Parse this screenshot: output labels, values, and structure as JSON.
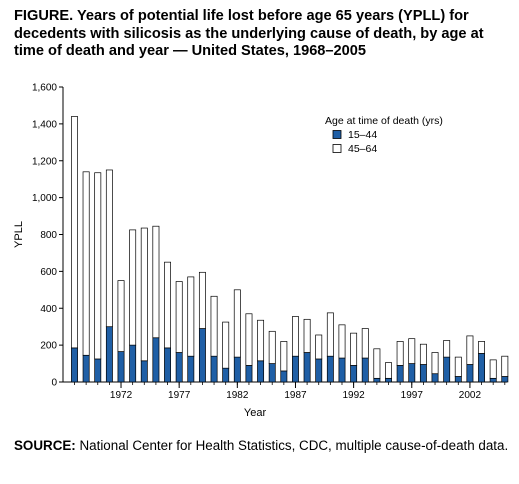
{
  "title": {
    "label": "FIGURE.",
    "text": "Years of potential life lost before age 65 years (YPLL) for decedents with silicosis as the underlying cause of death, by age at time of death and year — United States, 1968–2005"
  },
  "source": {
    "label": "SOURCE:",
    "text": "National Center for Health Statistics, CDC, multiple cause-of-death data."
  },
  "chart_data": {
    "type": "bar",
    "stacked": true,
    "xlabel": "Year",
    "ylabel": "YPLL",
    "ylim": [
      0,
      1600
    ],
    "yticks": [
      0,
      200,
      400,
      600,
      800,
      1000,
      1200,
      1400,
      1600
    ],
    "ytick_labels": [
      "0",
      "200",
      "400",
      "600",
      "800",
      "1,000",
      "1,200",
      "1,400",
      "1,600"
    ],
    "xtick_labels": [
      "1972",
      "1977",
      "1982",
      "1987",
      "1992",
      "1997",
      "2002"
    ],
    "legend": {
      "title": "Age at time of death (yrs)",
      "placement": "top-right"
    },
    "categories": [
      1968,
      1969,
      1970,
      1971,
      1972,
      1973,
      1974,
      1975,
      1976,
      1977,
      1978,
      1979,
      1980,
      1981,
      1982,
      1983,
      1984,
      1985,
      1986,
      1987,
      1988,
      1989,
      1990,
      1991,
      1992,
      1993,
      1994,
      1995,
      1996,
      1997,
      1998,
      1999,
      2000,
      2001,
      2002,
      2003,
      2004,
      2005
    ],
    "series": [
      {
        "name": "15–44",
        "color": "#1f5fa6",
        "values": [
          185,
          145,
          125,
          300,
          165,
          200,
          115,
          240,
          185,
          160,
          140,
          290,
          140,
          75,
          135,
          90,
          115,
          100,
          60,
          140,
          160,
          125,
          140,
          130,
          90,
          130,
          20,
          20,
          90,
          100,
          95,
          45,
          135,
          30,
          95,
          155,
          20,
          30
        ]
      },
      {
        "name": "45–64",
        "color": "#ffffff",
        "values": [
          1255,
          995,
          1010,
          850,
          385,
          625,
          720,
          605,
          465,
          385,
          430,
          305,
          325,
          250,
          365,
          280,
          220,
          175,
          160,
          215,
          180,
          130,
          235,
          180,
          175,
          160,
          160,
          85,
          130,
          135,
          110,
          115,
          90,
          105,
          155,
          65,
          100,
          110
        ]
      }
    ]
  }
}
